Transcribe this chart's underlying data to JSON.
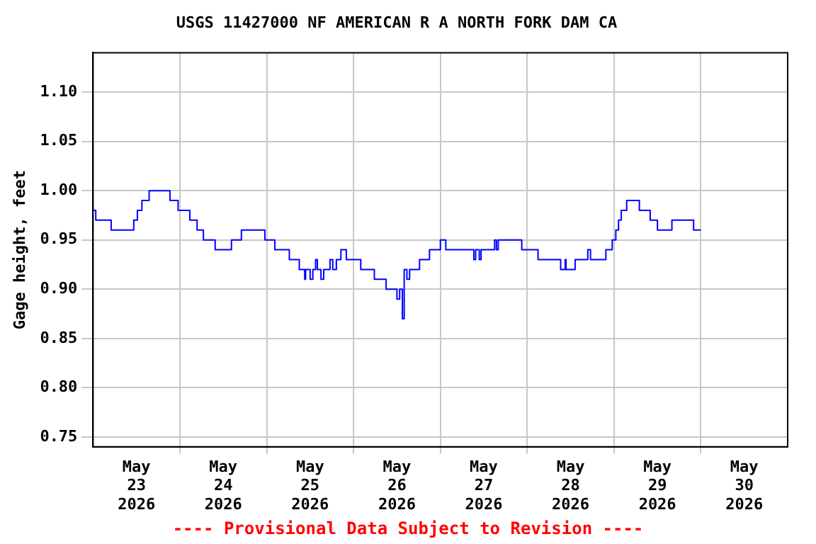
{
  "chart_data": {
    "type": "step",
    "title": "USGS 11427000 NF AMERICAN R A NORTH FORK DAM CA",
    "ylabel": "Gage height, feet",
    "annotations": [
      "---- Provisional Data Subject to Revision ----"
    ],
    "x": [
      "2026-05-23T00:00",
      "2026-05-23T00:45",
      "2026-05-23T05:00",
      "2026-05-23T11:15",
      "2026-05-23T12:15",
      "2026-05-23T13:30",
      "2026-05-23T15:30",
      "2026-05-23T21:15",
      "2026-05-23T23:30",
      "2026-05-24T02:45",
      "2026-05-24T04:45",
      "2026-05-24T06:30",
      "2026-05-24T09:45",
      "2026-05-24T14:15",
      "2026-05-24T17:00",
      "2026-05-24T23:30",
      "2026-05-25T02:15",
      "2026-05-25T06:15",
      "2026-05-25T09:00",
      "2026-05-25T10:30",
      "2026-05-25T10:45",
      "2026-05-25T12:00",
      "2026-05-25T12:45",
      "2026-05-25T13:30",
      "2026-05-25T14:00",
      "2026-05-25T15:00",
      "2026-05-25T15:45",
      "2026-05-25T17:30",
      "2026-05-25T18:15",
      "2026-05-25T19:15",
      "2026-05-25T20:30",
      "2026-05-25T22:00",
      "2026-05-26T02:00",
      "2026-05-26T05:45",
      "2026-05-26T09:00",
      "2026-05-26T12:00",
      "2026-05-26T12:45",
      "2026-05-26T13:30",
      "2026-05-26T14:00",
      "2026-05-26T14:45",
      "2026-05-26T15:30",
      "2026-05-26T18:15",
      "2026-05-26T21:00",
      "2026-05-27T00:00",
      "2026-05-27T01:30",
      "2026-05-27T09:15",
      "2026-05-27T09:45",
      "2026-05-27T10:45",
      "2026-05-27T11:15",
      "2026-05-27T15:00",
      "2026-05-27T15:30",
      "2026-05-27T16:00",
      "2026-05-27T22:30",
      "2026-05-28T03:00",
      "2026-05-28T09:15",
      "2026-05-28T10:30",
      "2026-05-28T10:45",
      "2026-05-28T13:15",
      "2026-05-28T16:45",
      "2026-05-28T17:30",
      "2026-05-28T21:45",
      "2026-05-28T23:30",
      "2026-05-29T00:30",
      "2026-05-29T01:15",
      "2026-05-29T02:00",
      "2026-05-29T03:30",
      "2026-05-29T07:00",
      "2026-05-29T10:00",
      "2026-05-29T12:00",
      "2026-05-29T16:00",
      "2026-05-29T22:00",
      "2026-05-30T00:00"
    ],
    "series": [
      {
        "color": "#0000ff",
        "values": [
          0.98,
          0.97,
          0.96,
          0.97,
          0.98,
          0.99,
          1.0,
          0.99,
          0.98,
          0.97,
          0.96,
          0.95,
          0.94,
          0.95,
          0.96,
          0.95,
          0.94,
          0.93,
          0.92,
          0.91,
          0.92,
          0.91,
          0.92,
          0.93,
          0.92,
          0.91,
          0.92,
          0.93,
          0.92,
          0.93,
          0.94,
          0.93,
          0.92,
          0.91,
          0.9,
          0.89,
          0.9,
          0.87,
          0.92,
          0.91,
          0.92,
          0.93,
          0.94,
          0.95,
          0.94,
          0.93,
          0.94,
          0.93,
          0.94,
          0.95,
          0.94,
          0.95,
          0.94,
          0.93,
          0.92,
          0.93,
          0.92,
          0.93,
          0.94,
          0.93,
          0.94,
          0.95,
          0.96,
          0.97,
          0.98,
          0.99,
          0.98,
          0.97,
          0.96,
          0.97,
          0.96,
          0.96
        ]
      }
    ],
    "xlim": [
      "2026-05-23",
      "2026-05-31"
    ],
    "xticks": [
      {
        "value": "2026-05-23T12:00",
        "label": "May\n23\n2026"
      },
      {
        "value": "2026-05-24",
        "label": null
      },
      {
        "value": "2026-05-24T12:00",
        "label": "May\n24\n2026"
      },
      {
        "value": "2026-05-25",
        "label": null
      },
      {
        "value": "2026-05-25T12:00",
        "label": "May\n25\n2026"
      },
      {
        "value": "2026-05-26",
        "label": null
      },
      {
        "value": "2026-05-26T12:00",
        "label": "May\n26\n2026"
      },
      {
        "value": "2026-05-27",
        "label": null
      },
      {
        "value": "2026-05-27T12:00",
        "label": "May\n27\n2026"
      },
      {
        "value": "2026-05-28",
        "label": null
      },
      {
        "value": "2026-05-28T12:00",
        "label": "May\n28\n2026"
      },
      {
        "value": "2026-05-29",
        "label": null
      },
      {
        "value": "2026-05-29T12:00",
        "label": "May\n29\n2026"
      },
      {
        "value": "2026-05-30",
        "label": null
      },
      {
        "value": "2026-05-30T12:00",
        "label": "May\n30\n2026"
      }
    ],
    "ylim": [
      0.74,
      1.14
    ],
    "yticks": [
      {
        "value": 0.75,
        "label": "0.75"
      },
      {
        "value": 0.8,
        "label": "0.80"
      },
      {
        "value": 0.85,
        "label": "0.85"
      },
      {
        "value": 0.9,
        "label": "0.90"
      },
      {
        "value": 0.95,
        "label": "0.95"
      },
      {
        "value": 1.0,
        "label": "1.00"
      },
      {
        "value": 1.05,
        "label": "1.05"
      },
      {
        "value": 1.1,
        "label": "1.10"
      }
    ],
    "grid": true,
    "legend": false,
    "marker": "none",
    "line_style": "solid"
  }
}
